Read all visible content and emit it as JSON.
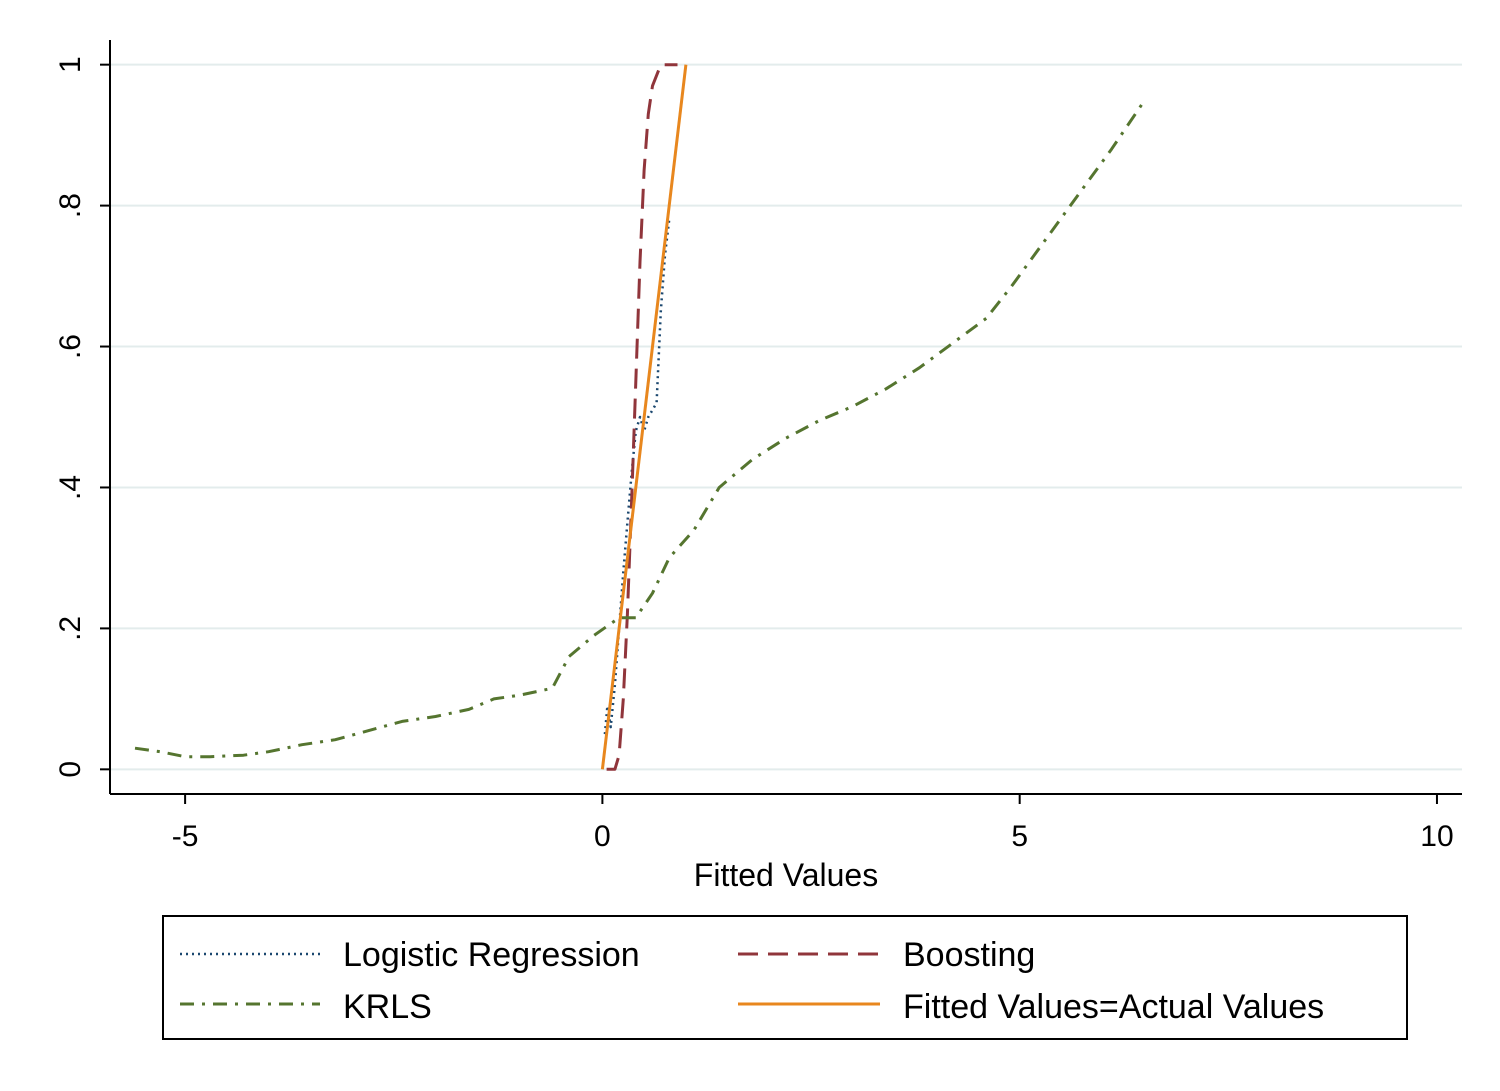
{
  "chart_data": {
    "type": "line",
    "title": "",
    "xlabel": "Fitted Values",
    "ylabel": "",
    "xlim": [
      -5.9,
      10.3
    ],
    "ylim": [
      -0.035,
      1.035
    ],
    "x_ticks": [
      {
        "value": -5,
        "label": "-5"
      },
      {
        "value": 0,
        "label": "0"
      },
      {
        "value": 5,
        "label": "5"
      },
      {
        "value": 10,
        "label": "10"
      }
    ],
    "y_ticks": [
      {
        "value": 0,
        "label": "0"
      },
      {
        "value": 0.2,
        "label": ".2"
      },
      {
        "value": 0.4,
        "label": ".4"
      },
      {
        "value": 0.6,
        "label": ".6"
      },
      {
        "value": 0.8,
        "label": ".8"
      },
      {
        "value": 1,
        "label": "1"
      }
    ],
    "grid": true,
    "legend_position": "bottom",
    "series": [
      {
        "name": "Logistic Regression",
        "color": "#1a476f",
        "style": "dotted",
        "points": [
          [
            0.03,
            0.05
          ],
          [
            0.06,
            0.09
          ],
          [
            0.1,
            0.06
          ],
          [
            0.15,
            0.12
          ],
          [
            0.2,
            0.2
          ],
          [
            0.25,
            0.28
          ],
          [
            0.3,
            0.35
          ],
          [
            0.35,
            0.42
          ],
          [
            0.4,
            0.48
          ],
          [
            0.45,
            0.5
          ],
          [
            0.5,
            0.48
          ],
          [
            0.55,
            0.5
          ],
          [
            0.6,
            0.51
          ],
          [
            0.65,
            0.52
          ],
          [
            0.7,
            0.65
          ],
          [
            0.75,
            0.73
          ],
          [
            0.8,
            0.78
          ]
        ]
      },
      {
        "name": "Boosting",
        "color": "#90353b",
        "style": "dashed",
        "points": [
          [
            0.05,
            0.0
          ],
          [
            0.15,
            0.0
          ],
          [
            0.2,
            0.02
          ],
          [
            0.25,
            0.1
          ],
          [
            0.3,
            0.22
          ],
          [
            0.35,
            0.38
          ],
          [
            0.4,
            0.55
          ],
          [
            0.45,
            0.72
          ],
          [
            0.5,
            0.85
          ],
          [
            0.55,
            0.93
          ],
          [
            0.6,
            0.97
          ],
          [
            0.7,
            1.0
          ],
          [
            0.9,
            1.0
          ]
        ]
      },
      {
        "name": "KRLS",
        "color": "#55752f",
        "style": "dashdot",
        "points": [
          [
            -5.6,
            0.03
          ],
          [
            -5.3,
            0.025
          ],
          [
            -5.0,
            0.018
          ],
          [
            -4.7,
            0.018
          ],
          [
            -4.3,
            0.02
          ],
          [
            -4.0,
            0.025
          ],
          [
            -3.6,
            0.035
          ],
          [
            -3.2,
            0.042
          ],
          [
            -2.8,
            0.055
          ],
          [
            -2.4,
            0.068
          ],
          [
            -2.0,
            0.075
          ],
          [
            -1.6,
            0.085
          ],
          [
            -1.3,
            0.1
          ],
          [
            -1.0,
            0.105
          ],
          [
            -0.6,
            0.115
          ],
          [
            -0.4,
            0.16
          ],
          [
            -0.1,
            0.19
          ],
          [
            0.2,
            0.215
          ],
          [
            0.4,
            0.215
          ],
          [
            0.6,
            0.25
          ],
          [
            0.8,
            0.3
          ],
          [
            1.1,
            0.34
          ],
          [
            1.4,
            0.4
          ],
          [
            1.8,
            0.44
          ],
          [
            2.2,
            0.47
          ],
          [
            2.6,
            0.495
          ],
          [
            3.0,
            0.515
          ],
          [
            3.4,
            0.54
          ],
          [
            3.8,
            0.57
          ],
          [
            4.2,
            0.605
          ],
          [
            4.6,
            0.64
          ],
          [
            4.9,
            0.685
          ],
          [
            5.3,
            0.75
          ],
          [
            5.7,
            0.815
          ],
          [
            6.1,
            0.88
          ],
          [
            6.5,
            0.95
          ]
        ]
      },
      {
        "name": "Fitted Values=Actual Values",
        "color": "#e8871e",
        "style": "solid",
        "points": [
          [
            0,
            0
          ],
          [
            1,
            1
          ]
        ]
      }
    ]
  }
}
